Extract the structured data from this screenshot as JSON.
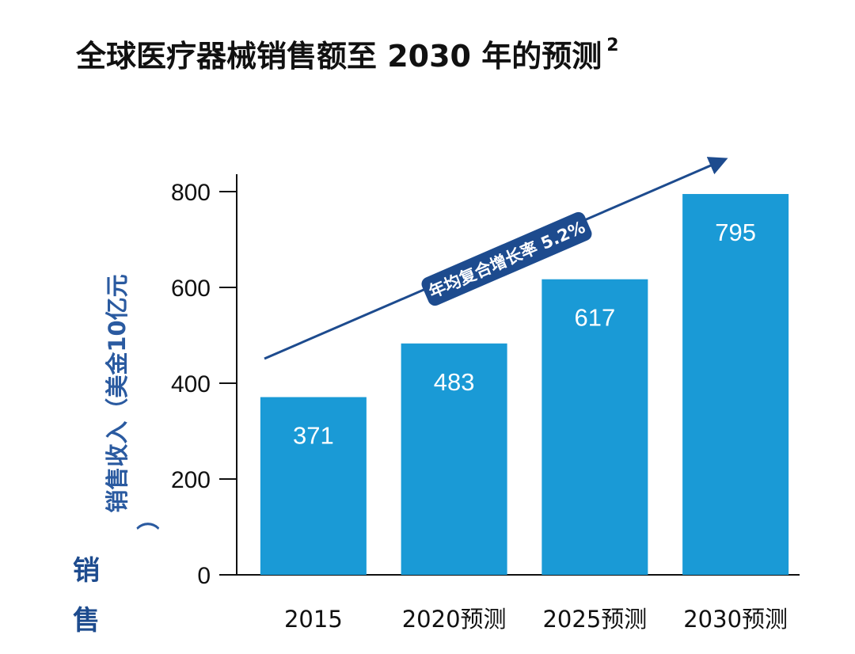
{
  "title": "全球医疗器械销售额至 2030 年的预测",
  "title_footnote": "2",
  "chart_data": {
    "type": "bar",
    "categories": [
      "2015",
      "2020预测",
      "2025预测",
      "2030预测"
    ],
    "values": [
      371,
      483,
      617,
      795
    ],
    "ylabel_line1": "销售收入（美金10亿元",
    "ylabel_line2": "）",
    "ylim": [
      0,
      800
    ],
    "yticks": [
      0,
      200,
      400,
      600,
      800
    ],
    "grid": false,
    "bar_color": "#1a9ad6",
    "annotation": "年均复合增长率 5.2%",
    "annotation_color": "#1d4b8e"
  },
  "stray_fragments": [
    "销",
    "售"
  ]
}
